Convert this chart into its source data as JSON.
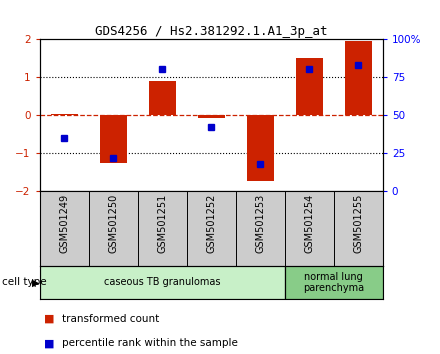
{
  "title": "GDS4256 / Hs2.381292.1.A1_3p_at",
  "samples": [
    "GSM501249",
    "GSM501250",
    "GSM501251",
    "GSM501252",
    "GSM501253",
    "GSM501254",
    "GSM501255"
  ],
  "transformed_count": [
    0.02,
    -1.25,
    0.9,
    -0.07,
    -1.72,
    1.5,
    1.95
  ],
  "percentile_rank": [
    35,
    22,
    80,
    42,
    18,
    80,
    83
  ],
  "bar_color": "#cc2200",
  "dot_color": "#0000cc",
  "ylim": [
    -2,
    2
  ],
  "yticks_left": [
    -2,
    -1,
    0,
    1,
    2
  ],
  "yticks_right": [
    0,
    25,
    50,
    75,
    100
  ],
  "ytick_labels_right": [
    "0",
    "25",
    "50",
    "75",
    "100%"
  ],
  "cell_groups": [
    {
      "label": "caseous TB granulomas",
      "n": 5,
      "color": "#c8f0c8"
    },
    {
      "label": "normal lung\nparenchyma",
      "n": 2,
      "color": "#88cc88"
    }
  ],
  "legend_red_label": "transformed count",
  "legend_blue_label": "percentile rank within the sample",
  "cell_type_label": "cell type",
  "xtick_bg": "#cccccc",
  "plot_bg": "#ffffff"
}
